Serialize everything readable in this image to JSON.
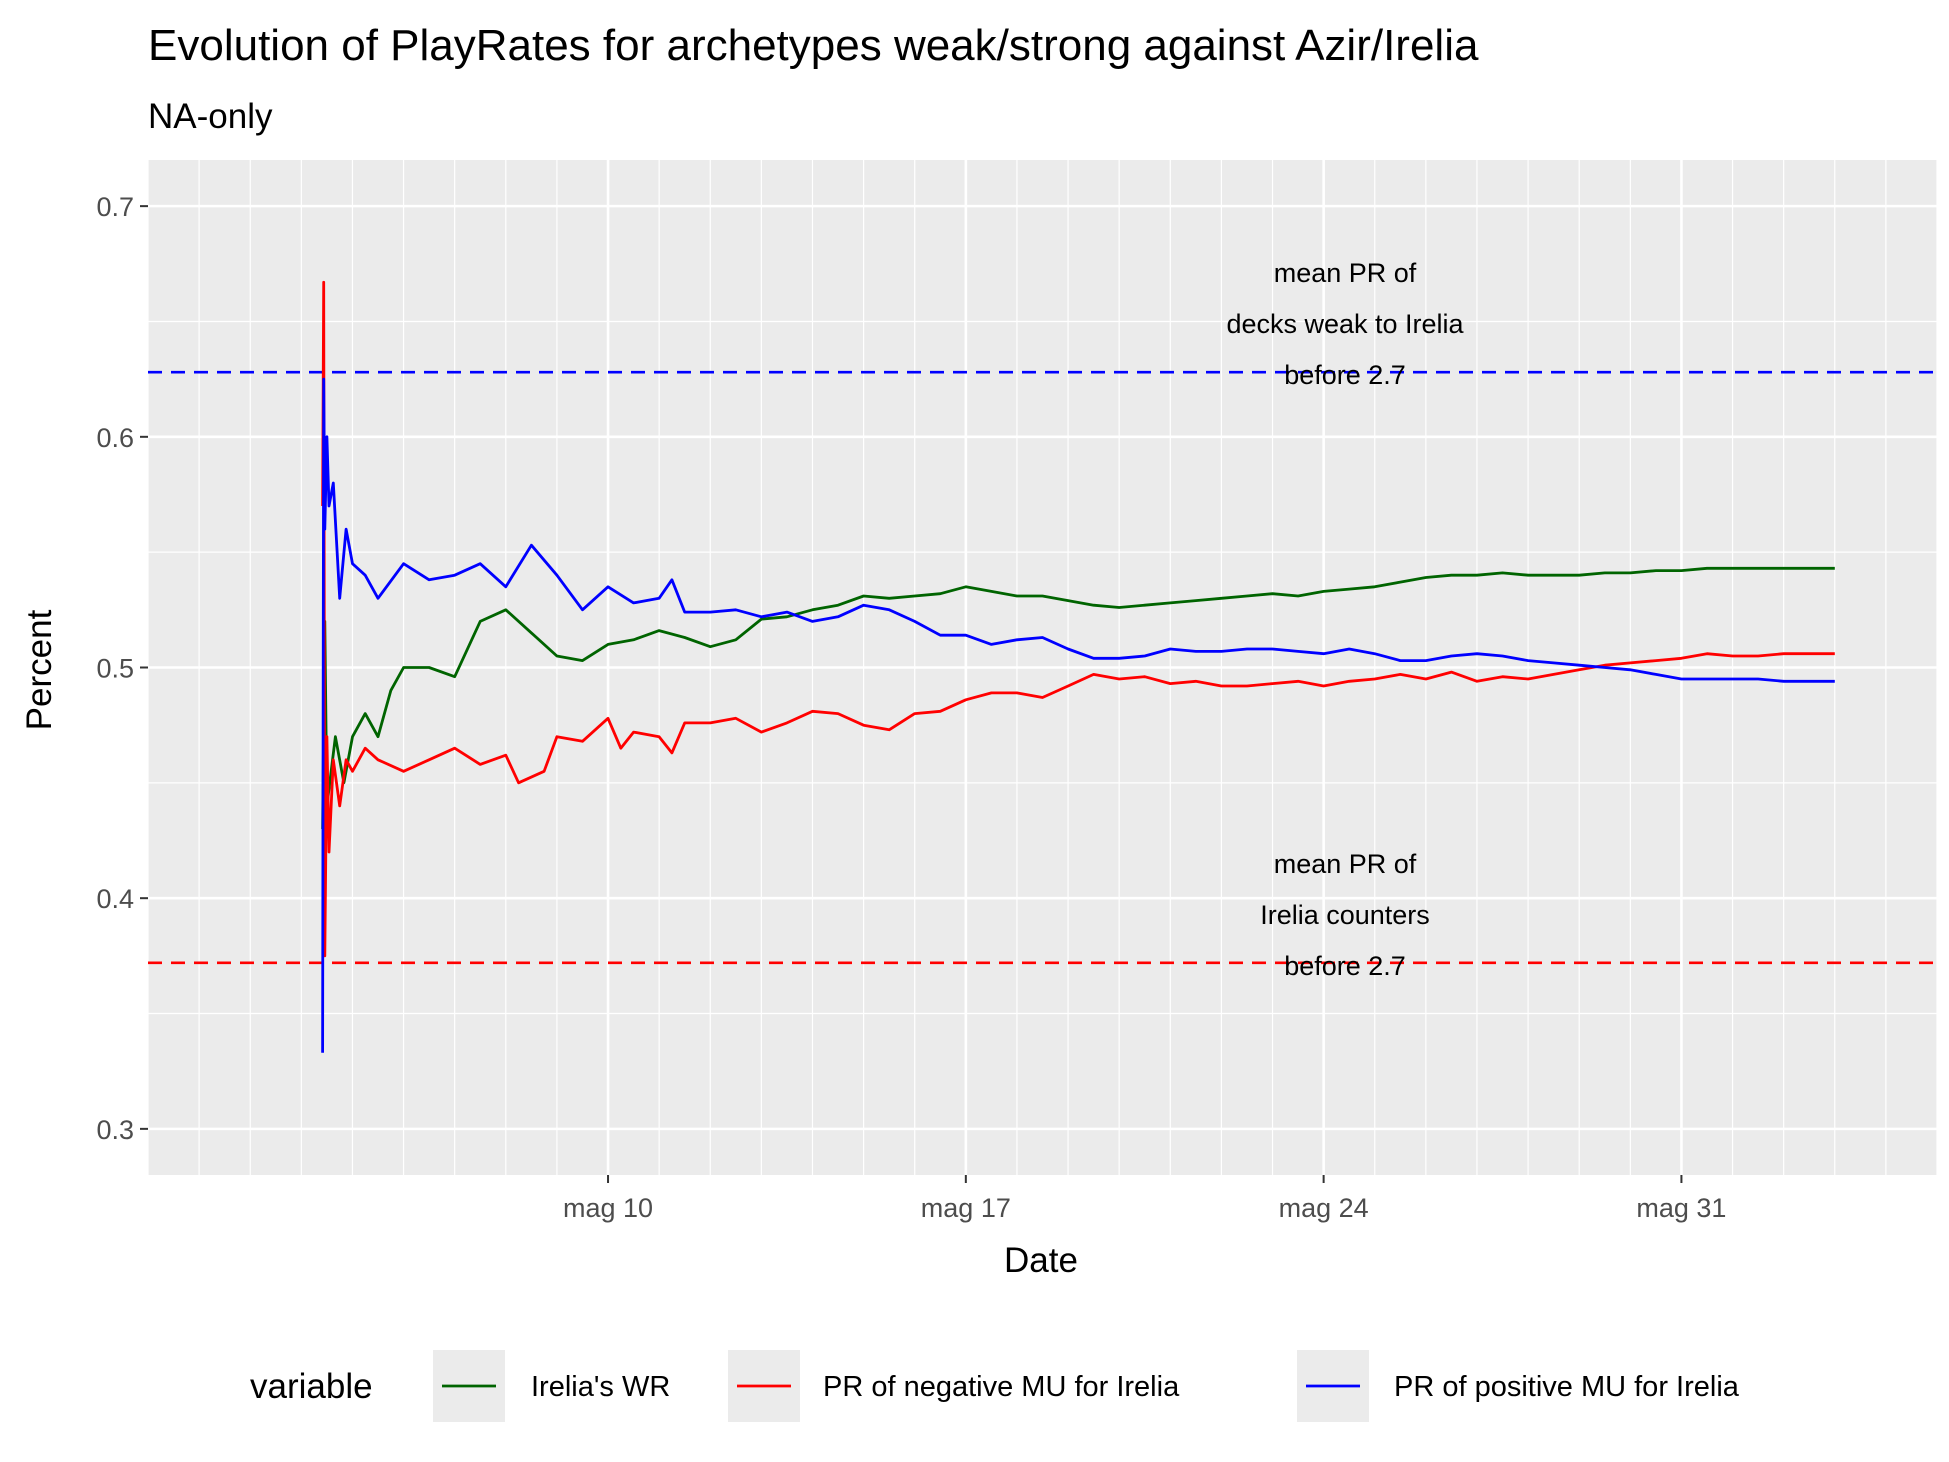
{
  "chart_data": {
    "type": "line",
    "title": "Evolution of PlayRates for archetypes weak/strong against Azir/Irelia",
    "subtitle": "NA-only",
    "xlabel": "Date",
    "ylabel": "Percent",
    "x_range": [
      "2021-05-01",
      "2021-06-05"
    ],
    "ylim": [
      0.28,
      0.72
    ],
    "x_ticks": [
      {
        "date": "2021-05-10",
        "label": "mag 10"
      },
      {
        "date": "2021-05-17",
        "label": "mag 17"
      },
      {
        "date": "2021-05-24",
        "label": "mag 24"
      },
      {
        "date": "2021-05-31",
        "label": "mag 31"
      }
    ],
    "y_ticks": [
      {
        "value": 0.3,
        "label": "0.3"
      },
      {
        "value": 0.4,
        "label": "0.4"
      },
      {
        "value": 0.5,
        "label": "0.5"
      },
      {
        "value": 0.6,
        "label": "0.6"
      },
      {
        "value": 0.7,
        "label": "0.7"
      }
    ],
    "grid": true,
    "legend": {
      "title": "variable",
      "position": "bottom"
    },
    "series": [
      {
        "name": "Irelia's WR",
        "color": "#006400",
        "points": [
          [
            "2021-05-04 10:00",
            0.43
          ],
          [
            "2021-05-04 11:00",
            0.52
          ],
          [
            "2021-05-04 12:00",
            0.44
          ],
          [
            "2021-05-04 16:00",
            0.47
          ],
          [
            "2021-05-04 20:00",
            0.45
          ],
          [
            "2021-05-05 00:00",
            0.47
          ],
          [
            "2021-05-05 06:00",
            0.48
          ],
          [
            "2021-05-05 12:00",
            0.47
          ],
          [
            "2021-05-05 18:00",
            0.49
          ],
          [
            "2021-05-06 00:00",
            0.5
          ],
          [
            "2021-05-06 12:00",
            0.5
          ],
          [
            "2021-05-07 00:00",
            0.496
          ],
          [
            "2021-05-07 12:00",
            0.52
          ],
          [
            "2021-05-08 00:00",
            0.525
          ],
          [
            "2021-05-08 12:00",
            0.515
          ],
          [
            "2021-05-09 00:00",
            0.505
          ],
          [
            "2021-05-09 12:00",
            0.503
          ],
          [
            "2021-05-10 00:00",
            0.51
          ],
          [
            "2021-05-10 12:00",
            0.512
          ],
          [
            "2021-05-11 00:00",
            0.516
          ],
          [
            "2021-05-11 12:00",
            0.513
          ],
          [
            "2021-05-12 00:00",
            0.509
          ],
          [
            "2021-05-12 12:00",
            0.512
          ],
          [
            "2021-05-13 00:00",
            0.521
          ],
          [
            "2021-05-13 12:00",
            0.522
          ],
          [
            "2021-05-14 00:00",
            0.525
          ],
          [
            "2021-05-14 12:00",
            0.527
          ],
          [
            "2021-05-15 00:00",
            0.531
          ],
          [
            "2021-05-15 12:00",
            0.53
          ],
          [
            "2021-05-16 00:00",
            0.531
          ],
          [
            "2021-05-16 12:00",
            0.532
          ],
          [
            "2021-05-17 00:00",
            0.535
          ],
          [
            "2021-05-17 12:00",
            0.533
          ],
          [
            "2021-05-18 00:00",
            0.531
          ],
          [
            "2021-05-18 12:00",
            0.531
          ],
          [
            "2021-05-19 00:00",
            0.529
          ],
          [
            "2021-05-19 12:00",
            0.527
          ],
          [
            "2021-05-20 00:00",
            0.526
          ],
          [
            "2021-05-20 12:00",
            0.527
          ],
          [
            "2021-05-21 00:00",
            0.528
          ],
          [
            "2021-05-21 12:00",
            0.529
          ],
          [
            "2021-05-22 00:00",
            0.53
          ],
          [
            "2021-05-22 12:00",
            0.531
          ],
          [
            "2021-05-23 00:00",
            0.532
          ],
          [
            "2021-05-23 12:00",
            0.531
          ],
          [
            "2021-05-24 00:00",
            0.533
          ],
          [
            "2021-05-24 12:00",
            0.534
          ],
          [
            "2021-05-25 00:00",
            0.535
          ],
          [
            "2021-05-25 12:00",
            0.537
          ],
          [
            "2021-05-26 00:00",
            0.539
          ],
          [
            "2021-05-26 12:00",
            0.54
          ],
          [
            "2021-05-27 00:00",
            0.54
          ],
          [
            "2021-05-27 12:00",
            0.541
          ],
          [
            "2021-05-28 00:00",
            0.54
          ],
          [
            "2021-05-28 12:00",
            0.54
          ],
          [
            "2021-05-29 00:00",
            0.54
          ],
          [
            "2021-05-29 12:00",
            0.541
          ],
          [
            "2021-05-30 00:00",
            0.541
          ],
          [
            "2021-05-30 12:00",
            0.542
          ],
          [
            "2021-05-31 00:00",
            0.542
          ],
          [
            "2021-05-31 12:00",
            0.543
          ],
          [
            "2021-06-01 00:00",
            0.543
          ],
          [
            "2021-06-01 12:00",
            0.543
          ],
          [
            "2021-06-02 00:00",
            0.543
          ],
          [
            "2021-06-02 12:00",
            0.543
          ],
          [
            "2021-06-03 00:00",
            0.543
          ]
        ]
      },
      {
        "name": "PR of negative MU for Irelia",
        "color": "#ff0000",
        "points": [
          [
            "2021-05-04 10:00",
            0.57
          ],
          [
            "2021-05-04 10:30",
            0.667
          ],
          [
            "2021-05-04 11:00",
            0.375
          ],
          [
            "2021-05-04 12:00",
            0.47
          ],
          [
            "2021-05-04 13:00",
            0.42
          ],
          [
            "2021-05-04 15:00",
            0.46
          ],
          [
            "2021-05-04 18:00",
            0.44
          ],
          [
            "2021-05-04 21:00",
            0.46
          ],
          [
            "2021-05-05 00:00",
            0.455
          ],
          [
            "2021-05-05 06:00",
            0.465
          ],
          [
            "2021-05-05 12:00",
            0.46
          ],
          [
            "2021-05-06 00:00",
            0.455
          ],
          [
            "2021-05-06 12:00",
            0.46
          ],
          [
            "2021-05-07 00:00",
            0.465
          ],
          [
            "2021-05-07 12:00",
            0.458
          ],
          [
            "2021-05-08 00:00",
            0.462
          ],
          [
            "2021-05-08 06:00",
            0.45
          ],
          [
            "2021-05-08 18:00",
            0.455
          ],
          [
            "2021-05-09 00:00",
            0.47
          ],
          [
            "2021-05-09 12:00",
            0.468
          ],
          [
            "2021-05-10 00:00",
            0.478
          ],
          [
            "2021-05-10 06:00",
            0.465
          ],
          [
            "2021-05-10 12:00",
            0.472
          ],
          [
            "2021-05-11 00:00",
            0.47
          ],
          [
            "2021-05-11 06:00",
            0.463
          ],
          [
            "2021-05-11 12:00",
            0.476
          ],
          [
            "2021-05-12 00:00",
            0.476
          ],
          [
            "2021-05-12 12:00",
            0.478
          ],
          [
            "2021-05-13 00:00",
            0.472
          ],
          [
            "2021-05-13 12:00",
            0.476
          ],
          [
            "2021-05-14 00:00",
            0.481
          ],
          [
            "2021-05-14 12:00",
            0.48
          ],
          [
            "2021-05-15 00:00",
            0.475
          ],
          [
            "2021-05-15 12:00",
            0.473
          ],
          [
            "2021-05-16 00:00",
            0.48
          ],
          [
            "2021-05-16 12:00",
            0.481
          ],
          [
            "2021-05-17 00:00",
            0.486
          ],
          [
            "2021-05-17 12:00",
            0.489
          ],
          [
            "2021-05-18 00:00",
            0.489
          ],
          [
            "2021-05-18 12:00",
            0.487
          ],
          [
            "2021-05-19 00:00",
            0.492
          ],
          [
            "2021-05-19 12:00",
            0.497
          ],
          [
            "2021-05-20 00:00",
            0.495
          ],
          [
            "2021-05-20 12:00",
            0.496
          ],
          [
            "2021-05-21 00:00",
            0.493
          ],
          [
            "2021-05-21 12:00",
            0.494
          ],
          [
            "2021-05-22 00:00",
            0.492
          ],
          [
            "2021-05-22 12:00",
            0.492
          ],
          [
            "2021-05-23 00:00",
            0.493
          ],
          [
            "2021-05-23 12:00",
            0.494
          ],
          [
            "2021-05-24 00:00",
            0.492
          ],
          [
            "2021-05-24 12:00",
            0.494
          ],
          [
            "2021-05-25 00:00",
            0.495
          ],
          [
            "2021-05-25 12:00",
            0.497
          ],
          [
            "2021-05-26 00:00",
            0.495
          ],
          [
            "2021-05-26 12:00",
            0.498
          ],
          [
            "2021-05-27 00:00",
            0.494
          ],
          [
            "2021-05-27 12:00",
            0.496
          ],
          [
            "2021-05-28 00:00",
            0.495
          ],
          [
            "2021-05-28 12:00",
            0.497
          ],
          [
            "2021-05-29 00:00",
            0.499
          ],
          [
            "2021-05-29 12:00",
            0.501
          ],
          [
            "2021-05-30 00:00",
            0.502
          ],
          [
            "2021-05-30 12:00",
            0.503
          ],
          [
            "2021-05-31 00:00",
            0.504
          ],
          [
            "2021-05-31 12:00",
            0.506
          ],
          [
            "2021-06-01 00:00",
            0.505
          ],
          [
            "2021-06-01 12:00",
            0.505
          ],
          [
            "2021-06-02 00:00",
            0.506
          ],
          [
            "2021-06-02 12:00",
            0.506
          ],
          [
            "2021-06-03 00:00",
            0.506
          ]
        ]
      },
      {
        "name": "PR of positive MU for Irelia",
        "color": "#0000ff",
        "points": [
          [
            "2021-05-04 10:00",
            0.333
          ],
          [
            "2021-05-04 10:30",
            0.625
          ],
          [
            "2021-05-04 11:00",
            0.56
          ],
          [
            "2021-05-04 12:00",
            0.6
          ],
          [
            "2021-05-04 13:00",
            0.57
          ],
          [
            "2021-05-04 15:00",
            0.58
          ],
          [
            "2021-05-04 18:00",
            0.53
          ],
          [
            "2021-05-04 21:00",
            0.56
          ],
          [
            "2021-05-05 00:00",
            0.545
          ],
          [
            "2021-05-05 06:00",
            0.54
          ],
          [
            "2021-05-05 12:00",
            0.53
          ],
          [
            "2021-05-06 00:00",
            0.545
          ],
          [
            "2021-05-06 12:00",
            0.538
          ],
          [
            "2021-05-07 00:00",
            0.54
          ],
          [
            "2021-05-07 12:00",
            0.545
          ],
          [
            "2021-05-08 00:00",
            0.535
          ],
          [
            "2021-05-08 12:00",
            0.553
          ],
          [
            "2021-05-09 00:00",
            0.54
          ],
          [
            "2021-05-09 12:00",
            0.525
          ],
          [
            "2021-05-10 00:00",
            0.535
          ],
          [
            "2021-05-10 12:00",
            0.528
          ],
          [
            "2021-05-11 00:00",
            0.53
          ],
          [
            "2021-05-11 06:00",
            0.538
          ],
          [
            "2021-05-11 12:00",
            0.524
          ],
          [
            "2021-05-12 00:00",
            0.524
          ],
          [
            "2021-05-12 12:00",
            0.525
          ],
          [
            "2021-05-13 00:00",
            0.522
          ],
          [
            "2021-05-13 12:00",
            0.524
          ],
          [
            "2021-05-14 00:00",
            0.52
          ],
          [
            "2021-05-14 12:00",
            0.522
          ],
          [
            "2021-05-15 00:00",
            0.527
          ],
          [
            "2021-05-15 12:00",
            0.525
          ],
          [
            "2021-05-16 00:00",
            0.52
          ],
          [
            "2021-05-16 12:00",
            0.514
          ],
          [
            "2021-05-17 00:00",
            0.514
          ],
          [
            "2021-05-17 12:00",
            0.51
          ],
          [
            "2021-05-18 00:00",
            0.512
          ],
          [
            "2021-05-18 12:00",
            0.513
          ],
          [
            "2021-05-19 00:00",
            0.508
          ],
          [
            "2021-05-19 12:00",
            0.504
          ],
          [
            "2021-05-20 00:00",
            0.504
          ],
          [
            "2021-05-20 12:00",
            0.505
          ],
          [
            "2021-05-21 00:00",
            0.508
          ],
          [
            "2021-05-21 12:00",
            0.507
          ],
          [
            "2021-05-22 00:00",
            0.507
          ],
          [
            "2021-05-22 12:00",
            0.508
          ],
          [
            "2021-05-23 00:00",
            0.508
          ],
          [
            "2021-05-23 12:00",
            0.507
          ],
          [
            "2021-05-24 00:00",
            0.506
          ],
          [
            "2021-05-24 12:00",
            0.508
          ],
          [
            "2021-05-25 00:00",
            0.506
          ],
          [
            "2021-05-25 12:00",
            0.503
          ],
          [
            "2021-05-26 00:00",
            0.503
          ],
          [
            "2021-05-26 12:00",
            0.505
          ],
          [
            "2021-05-27 00:00",
            0.506
          ],
          [
            "2021-05-27 12:00",
            0.505
          ],
          [
            "2021-05-28 00:00",
            0.503
          ],
          [
            "2021-05-28 12:00",
            0.502
          ],
          [
            "2021-05-29 00:00",
            0.501
          ],
          [
            "2021-05-29 12:00",
            0.5
          ],
          [
            "2021-05-30 00:00",
            0.499
          ],
          [
            "2021-05-30 12:00",
            0.497
          ],
          [
            "2021-05-31 00:00",
            0.495
          ],
          [
            "2021-05-31 12:00",
            0.495
          ],
          [
            "2021-06-01 00:00",
            0.495
          ],
          [
            "2021-06-01 12:00",
            0.495
          ],
          [
            "2021-06-02 00:00",
            0.494
          ],
          [
            "2021-06-02 12:00",
            0.494
          ],
          [
            "2021-06-03 00:00",
            0.494
          ]
        ]
      }
    ],
    "reference_lines": [
      {
        "value": 0.628,
        "color": "#0000ff",
        "style": "dashed",
        "label_lines": [
          "mean PR of",
          "decks weak to Irelia",
          "before 2.7"
        ]
      },
      {
        "value": 0.372,
        "color": "#ff0000",
        "style": "dashed",
        "label_lines": [
          "mean PR of",
          "Irelia counters",
          "before 2.7"
        ]
      }
    ]
  }
}
